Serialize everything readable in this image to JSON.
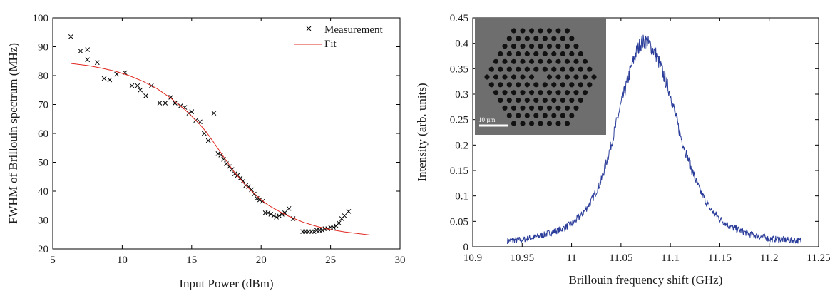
{
  "chart_data": [
    {
      "type": "scatter",
      "xlabel": "Input Power (dBm)",
      "ylabel": "FWHM of Brillouin spectrum (MHz)",
      "xlim": [
        5,
        30
      ],
      "ylim": [
        20,
        100
      ],
      "xticks": [
        5,
        10,
        15,
        20,
        25,
        30
      ],
      "yticks": [
        20,
        30,
        40,
        50,
        60,
        70,
        80,
        90,
        100
      ],
      "xtick_labels": [
        "5",
        "10",
        "15",
        "20",
        "25",
        "30"
      ],
      "ytick_labels": [
        "20",
        "30",
        "40",
        "50",
        "60",
        "70",
        "80",
        "90",
        "100"
      ],
      "legend": {
        "position": "top-right",
        "entries": [
          "Measurement",
          "Fit"
        ]
      },
      "series": [
        {
          "name": "Measurement",
          "kind": "markers",
          "marker": "x",
          "color": "#000000",
          "x": [
            6.3,
            7.0,
            7.5,
            7.5,
            8.2,
            8.7,
            9.1,
            9.6,
            10.2,
            10.7,
            11.1,
            11.3,
            11.7,
            12.1,
            12.7,
            13.1,
            13.5,
            13.8,
            14.2,
            14.5,
            14.8,
            15.0,
            15.3,
            15.6,
            15.9,
            16.2,
            16.6,
            16.9,
            17.1,
            17.3,
            17.5,
            17.7,
            17.9,
            18.1,
            18.3,
            18.5,
            18.7,
            18.9,
            19.1,
            19.3,
            19.5,
            19.7,
            19.9,
            20.1,
            20.3,
            20.5,
            20.7,
            20.9,
            21.1,
            21.3,
            21.5,
            21.7,
            22.0,
            22.3,
            23.0,
            23.2,
            23.4,
            23.6,
            23.8,
            24.0,
            24.2,
            24.4,
            24.6,
            24.8,
            25.0,
            25.2,
            25.4,
            25.6,
            25.8,
            26.0,
            26.3
          ],
          "y": [
            93.5,
            88.5,
            89.0,
            85.5,
            84.5,
            79.0,
            78.5,
            80.5,
            81.0,
            76.5,
            76.5,
            75.0,
            73.0,
            76.5,
            70.5,
            70.5,
            72.5,
            70.5,
            69.5,
            69.0,
            67.0,
            67.5,
            64.5,
            64.0,
            60.0,
            57.5,
            67.0,
            53.0,
            52.5,
            51.0,
            49.5,
            48.5,
            47.5,
            46.0,
            45.5,
            44.5,
            43.5,
            42.0,
            41.5,
            40.5,
            39.0,
            37.5,
            37.0,
            36.5,
            32.5,
            32.5,
            32.0,
            31.5,
            31.0,
            31.5,
            32.0,
            32.5,
            34.0,
            30.5,
            26.0,
            26.0,
            26.0,
            26.0,
            26.0,
            26.5,
            26.5,
            26.5,
            27.0,
            27.0,
            27.5,
            27.5,
            28.0,
            29.0,
            30.5,
            31.5,
            33.0
          ]
        },
        {
          "name": "Fit",
          "kind": "line",
          "color": "#e0261d",
          "x": [
            6.3,
            7.5,
            8.5,
            9.5,
            10.5,
            11.5,
            12.5,
            13.5,
            14.5,
            15.5,
            16.0,
            16.5,
            17.0,
            17.5,
            18.0,
            18.5,
            19.0,
            19.5,
            20.0,
            20.5,
            21.0,
            21.5,
            22.0,
            23.0,
            24.0,
            25.0,
            26.0,
            27.0,
            27.9
          ],
          "y": [
            84.2,
            83.5,
            82.6,
            81.5,
            80.0,
            78.0,
            75.5,
            72.2,
            68.3,
            63.6,
            60.8,
            57.5,
            54.0,
            50.5,
            47.0,
            44.2,
            41.5,
            39.2,
            37.0,
            35.2,
            33.8,
            32.5,
            31.3,
            29.3,
            27.8,
            26.7,
            25.9,
            25.3,
            24.8
          ]
        }
      ]
    },
    {
      "type": "line",
      "xlabel": "Brillouin frequency shift (GHz)",
      "ylabel": "Intensity (arb. units)",
      "xlim": [
        10.9,
        11.25
      ],
      "ylim": [
        0,
        0.45
      ],
      "xticks": [
        10.9,
        10.95,
        11.0,
        11.05,
        11.1,
        11.15,
        11.2,
        11.25
      ],
      "yticks": [
        0,
        0.05,
        0.1,
        0.15,
        0.2,
        0.25,
        0.3,
        0.35,
        0.4,
        0.45
      ],
      "xtick_labels": [
        "10.9",
        "10.95",
        "11",
        "11.05",
        "11.1",
        "11.15",
        "11.2",
        "11.25"
      ],
      "ytick_labels": [
        "0",
        "0.05",
        "0.1",
        "0.15",
        "0.2",
        "0.25",
        "0.3",
        "0.35",
        "0.4",
        "0.45"
      ],
      "series": [
        {
          "kind": "line",
          "color": "#2b3d9a",
          "x": [
            10.935,
            10.95,
            10.97,
            10.99,
            11.0,
            11.01,
            11.02,
            11.03,
            11.04,
            11.05,
            11.06,
            11.065,
            11.07,
            11.075,
            11.08,
            11.085,
            11.09,
            11.1,
            11.11,
            11.12,
            11.13,
            11.14,
            11.15,
            11.16,
            11.18,
            11.2,
            11.232
          ],
          "y": [
            0.012,
            0.014,
            0.022,
            0.035,
            0.045,
            0.062,
            0.09,
            0.13,
            0.2,
            0.28,
            0.35,
            0.38,
            0.4,
            0.405,
            0.395,
            0.38,
            0.355,
            0.3,
            0.22,
            0.16,
            0.11,
            0.075,
            0.055,
            0.04,
            0.025,
            0.016,
            0.012
          ]
        }
      ],
      "inset": {
        "description_color": "#6e6e6e",
        "scale_bar_label": "10 µm"
      }
    }
  ]
}
